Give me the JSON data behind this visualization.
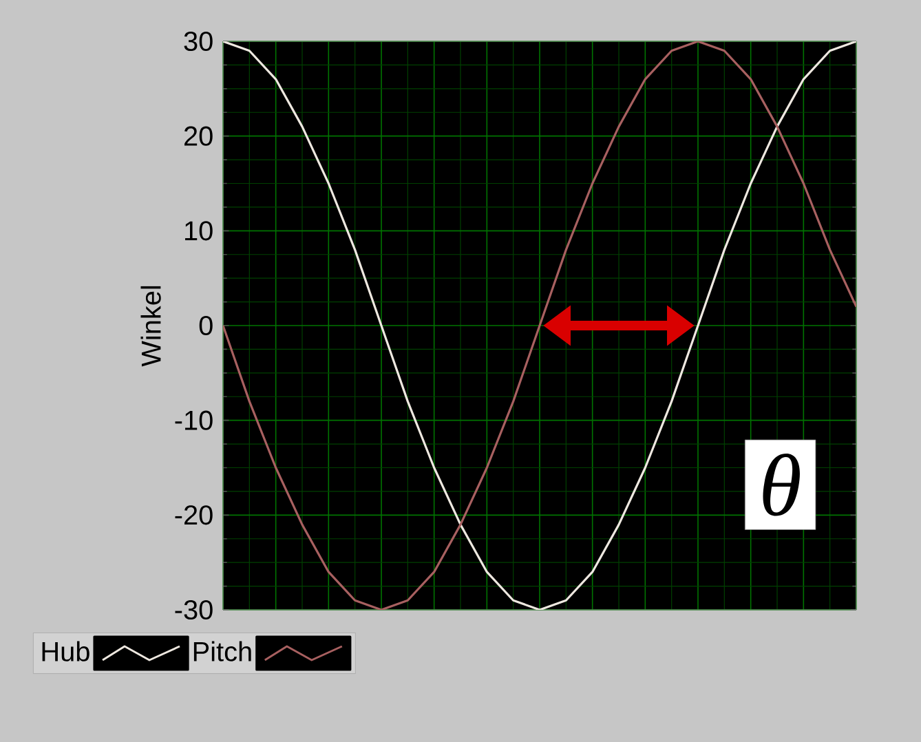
{
  "chart_data": {
    "type": "line",
    "ylabel": "Winkel",
    "categories": [
      null,
      null,
      null,
      null,
      null,
      null,
      null,
      null,
      null,
      null,
      null,
      null,
      null,
      null,
      null,
      null,
      null,
      null,
      null,
      null,
      null,
      null,
      null,
      null,
      null
    ],
    "series": [
      {
        "name": "Hub",
        "color": "#eee8e0",
        "values": [
          30,
          29,
          26,
          21,
          15,
          8,
          0,
          -8,
          -15,
          -21,
          -26,
          -29,
          -30,
          -29,
          -26,
          -21,
          -15,
          -8,
          0,
          8,
          15,
          21,
          26,
          29,
          30
        ]
      },
      {
        "name": "Pitch",
        "color": "#a86060",
        "values": [
          0,
          -8,
          -15,
          -21,
          -26,
          -29,
          -30,
          -29,
          -26,
          -21,
          -15,
          -8,
          0,
          8,
          15,
          21,
          26,
          29,
          30,
          29,
          26,
          21,
          15,
          8,
          2
        ]
      }
    ],
    "ylim": [
      -30,
      30
    ],
    "yticks": [
      -30,
      -20,
      -10,
      0,
      10,
      20,
      30
    ],
    "tick_labels": "y",
    "grid": true,
    "legend": "bottom left",
    "marker": "none",
    "line_style": "solid",
    "annotations": [
      "θ"
    ]
  }
}
